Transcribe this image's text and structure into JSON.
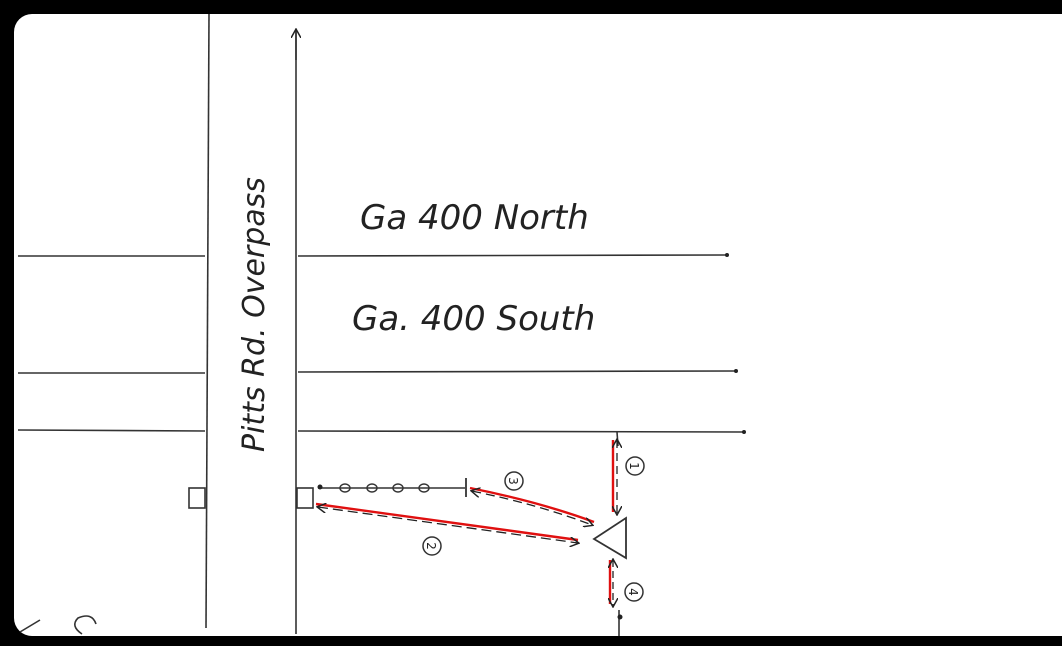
{
  "labels": {
    "overpass": "Pitts Rd. Overpass",
    "north": "Ga 400 North",
    "south": "Ga. 400 South"
  },
  "markers": {
    "m1": "1",
    "m2": "2",
    "m3": "3",
    "m4": "4"
  },
  "colors": {
    "ink": "#222222",
    "measure": "#e01010",
    "frame": "#000000",
    "paper": "#ffffff"
  }
}
